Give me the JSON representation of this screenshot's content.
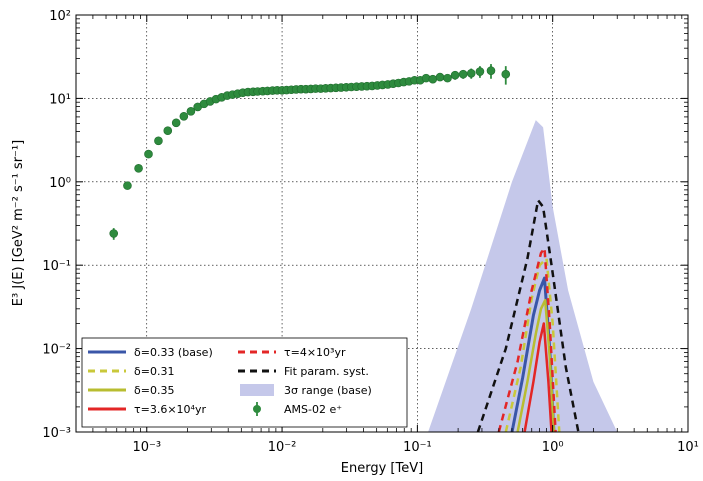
{
  "chart_data": {
    "type": "line",
    "title": "",
    "xlabel": "Energy [TeV]",
    "ylabel": "E³ J(E) [GeV² m⁻² s⁻¹ sr⁻¹]",
    "xscale": "log",
    "yscale": "log",
    "xlim": [
      0.0003,
      10
    ],
    "ylim": [
      0.001,
      100
    ],
    "grid": true,
    "legend_position": "lower-left",
    "x_ticks": [
      {
        "value": 0.001,
        "label": "10⁻³"
      },
      {
        "value": 0.01,
        "label": "10⁻²"
      },
      {
        "value": 0.1,
        "label": "10⁻¹"
      },
      {
        "value": 1,
        "label": "10⁰"
      },
      {
        "value": 10,
        "label": "10¹"
      }
    ],
    "y_ticks": [
      {
        "value": 0.001,
        "label": "10⁻³"
      },
      {
        "value": 0.01,
        "label": "10⁻²"
      },
      {
        "value": 0.1,
        "label": "10⁻¹"
      },
      {
        "value": 1,
        "label": "10⁰"
      },
      {
        "value": 10,
        "label": "10¹"
      },
      {
        "value": 100,
        "label": "10²"
      }
    ],
    "band": {
      "name": "3σ range (base)",
      "color": "#c5c8ea",
      "x": [
        0.12,
        0.25,
        0.5,
        0.75,
        0.85,
        1.0,
        1.3,
        2.0,
        3.0
      ],
      "upper": [
        0.001,
        0.03,
        1.0,
        5.5,
        4.5,
        0.5,
        0.05,
        0.004,
        0.001
      ]
    },
    "series": [
      {
        "name": "δ=0.33 (base)",
        "style": "solid",
        "color": "#3a56a8",
        "width": 3,
        "x": [
          0.5,
          0.6,
          0.72,
          0.8,
          0.87,
          0.95,
          1.02
        ],
        "y": [
          0.001,
          0.0045,
          0.025,
          0.05,
          0.07,
          0.01,
          0.001
        ]
      },
      {
        "name": "δ=0.31",
        "style": "dashed",
        "color": "#c9c83a",
        "width": 2.5,
        "x": [
          0.45,
          0.58,
          0.7,
          0.8,
          0.9,
          1.0,
          1.12
        ],
        "y": [
          0.001,
          0.006,
          0.04,
          0.1,
          0.12,
          0.02,
          0.001
        ]
      },
      {
        "name": "δ=0.35",
        "style": "solid",
        "color": "#b8bd30",
        "width": 2.5,
        "x": [
          0.55,
          0.65,
          0.75,
          0.82,
          0.88,
          0.95,
          1.02
        ],
        "y": [
          0.001,
          0.004,
          0.015,
          0.03,
          0.038,
          0.008,
          0.001
        ]
      },
      {
        "name": "τ=3.6×10⁴yr",
        "style": "solid",
        "color": "#e32626",
        "width": 2.5,
        "x": [
          0.62,
          0.72,
          0.8,
          0.86,
          0.93,
          0.98
        ],
        "y": [
          0.001,
          0.004,
          0.012,
          0.02,
          0.004,
          0.001
        ]
      },
      {
        "name": "τ=4×10³yr",
        "style": "dashed",
        "color": "#e32626",
        "width": 2.5,
        "x": [
          0.4,
          0.55,
          0.7,
          0.82,
          0.87,
          0.95,
          1.05
        ],
        "y": [
          0.001,
          0.007,
          0.05,
          0.14,
          0.16,
          0.02,
          0.001
        ]
      },
      {
        "name": "Fit param. syst.",
        "style": "dashed",
        "color": "#111111",
        "width": 2.5,
        "x": [
          0.28,
          0.45,
          0.65,
          0.78,
          0.85,
          1.0,
          1.25,
          1.55
        ],
        "y": [
          0.001,
          0.01,
          0.12,
          0.6,
          0.5,
          0.08,
          0.006,
          0.001
        ]
      }
    ],
    "points": {
      "name": "AMS-02 e⁺",
      "color": "#2e8b3e",
      "x": [
        0.00057,
        0.00072,
        0.00087,
        0.00103,
        0.00122,
        0.00143,
        0.00165,
        0.00188,
        0.00212,
        0.00238,
        0.00265,
        0.00294,
        0.00325,
        0.00358,
        0.00393,
        0.0043,
        0.0047,
        0.00513,
        0.0056,
        0.0061,
        0.0066,
        0.0072,
        0.0078,
        0.0085,
        0.0092,
        0.01,
        0.0108,
        0.0117,
        0.0127,
        0.0138,
        0.015,
        0.0163,
        0.0177,
        0.0193,
        0.021,
        0.0229,
        0.025,
        0.0273,
        0.0298,
        0.0325,
        0.0355,
        0.0388,
        0.0424,
        0.0463,
        0.0506,
        0.0553,
        0.0605,
        0.0662,
        0.0724,
        0.0793,
        0.0869,
        0.0953,
        0.105,
        0.116,
        0.13,
        0.147,
        0.167,
        0.19,
        0.218,
        0.25,
        0.29,
        0.35,
        0.45
      ],
      "y": [
        0.24,
        0.9,
        1.45,
        2.15,
        3.1,
        4.1,
        5.1,
        6.1,
        7.0,
        7.9,
        8.6,
        9.2,
        9.8,
        10.3,
        10.8,
        11.1,
        11.4,
        11.7,
        11.9,
        12.0,
        12.1,
        12.2,
        12.3,
        12.4,
        12.5,
        12.5,
        12.6,
        12.7,
        12.8,
        12.9,
        12.9,
        13.0,
        13.1,
        13.1,
        13.2,
        13.3,
        13.4,
        13.5,
        13.6,
        13.7,
        13.8,
        13.9,
        14.0,
        14.1,
        14.3,
        14.5,
        14.7,
        15.0,
        15.3,
        15.7,
        16.0,
        16.5,
        16.5,
        17.5,
        17.0,
        18.0,
        17.5,
        19.0,
        19.5,
        20.0,
        21.0,
        21.5,
        19.5
      ],
      "err_frac": [
        0.16,
        0.1,
        0.08,
        0.06,
        0.05,
        0.05,
        0.04,
        0.04,
        0.04,
        0.04,
        0.03,
        0.03,
        0.03,
        0.03,
        0.03,
        0.03,
        0.03,
        0.03,
        0.03,
        0.03,
        0.03,
        0.03,
        0.03,
        0.03,
        0.03,
        0.03,
        0.03,
        0.03,
        0.03,
        0.03,
        0.03,
        0.03,
        0.03,
        0.03,
        0.03,
        0.04,
        0.04,
        0.04,
        0.04,
        0.04,
        0.04,
        0.05,
        0.05,
        0.05,
        0.05,
        0.06,
        0.06,
        0.06,
        0.06,
        0.07,
        0.07,
        0.08,
        0.08,
        0.08,
        0.09,
        0.1,
        0.1,
        0.12,
        0.12,
        0.14,
        0.16,
        0.2,
        0.25
      ]
    },
    "legend": [
      {
        "label": "δ=0.33 (base)",
        "kind": "solid",
        "color": "#3a56a8"
      },
      {
        "label": "δ=0.31",
        "kind": "dashed",
        "color": "#c9c83a"
      },
      {
        "label": "δ=0.35",
        "kind": "solid",
        "color": "#b8bd30"
      },
      {
        "label": "τ=3.6×10⁴yr",
        "kind": "solid",
        "color": "#e32626"
      },
      {
        "label": "τ=4×10³yr",
        "kind": "dashed",
        "color": "#e32626"
      },
      {
        "label": "Fit param. syst.",
        "kind": "dashed",
        "color": "#111111"
      },
      {
        "label": "3σ range (base)",
        "kind": "band",
        "color": "#c5c8ea"
      },
      {
        "label": "AMS-02 e⁺",
        "kind": "point",
        "color": "#2e8b3e"
      }
    ]
  }
}
